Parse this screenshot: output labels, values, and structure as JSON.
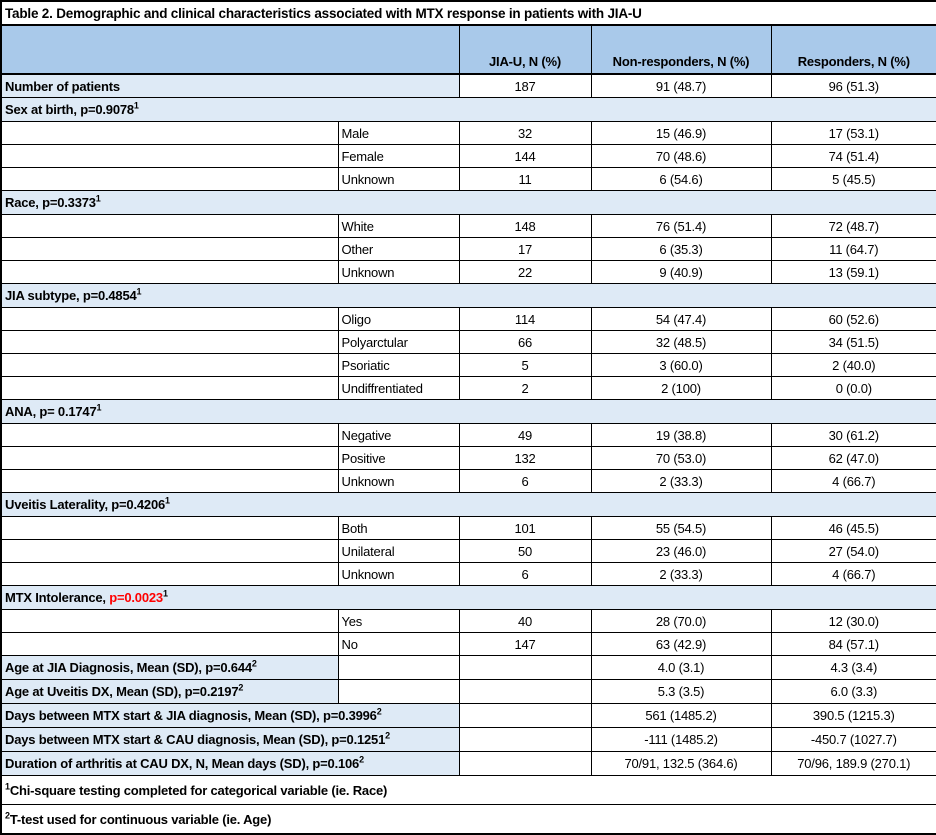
{
  "title": "Table 2. Demographic and clinical characteristics associated with MTX response in patients with JIA-U",
  "columns": [
    "JIA-U,  N (%)",
    "Non-responders, N (%)",
    "Responders, N (%)"
  ],
  "colors": {
    "header_blue": "#A9C9EA",
    "light_blue": "#DEEAF6",
    "p_value_red": "#FF0000",
    "border": "#000000"
  },
  "rows": [
    {
      "type": "count",
      "pre": "Number of patients",
      "jia": "187",
      "nonresp": "91 (48.7)",
      "resp": "96 (51.3)"
    },
    {
      "type": "section",
      "pre": "Sex at birth, p=0.9078",
      "sup": "1"
    },
    {
      "type": "sub",
      "pre": "Male",
      "jia": "32",
      "nonresp": "15 (46.9)",
      "resp": "17 (53.1)"
    },
    {
      "type": "sub",
      "pre": "Female",
      "jia": "144",
      "nonresp": "70 (48.6)",
      "resp": "74 (51.4)"
    },
    {
      "type": "sub",
      "pre": "Unknown",
      "jia": "11",
      "nonresp": "6 (54.6)",
      "resp": "5 (45.5)"
    },
    {
      "type": "section",
      "pre": "Race, p=0.3373",
      "sup": "1"
    },
    {
      "type": "sub",
      "pre": "White",
      "jia": "148",
      "nonresp": "76 (51.4)",
      "resp": "72 (48.7)"
    },
    {
      "type": "sub",
      "pre": "Other",
      "jia": "17",
      "nonresp": "6 (35.3)",
      "resp": "11 (64.7)"
    },
    {
      "type": "sub",
      "pre": "Unknown",
      "jia": "22",
      "nonresp": "9 (40.9)",
      "resp": "13 (59.1)"
    },
    {
      "type": "section",
      "pre": "JIA subtype, p=0.4854",
      "sup": "1"
    },
    {
      "type": "sub",
      "pre": "Oligo",
      "jia": "114",
      "nonresp": "54 (47.4)",
      "resp": "60 (52.6)"
    },
    {
      "type": "sub",
      "pre": "Polyarctular",
      "jia": "66",
      "nonresp": "32 (48.5)",
      "resp": "34 (51.5)"
    },
    {
      "type": "sub",
      "pre": "Psoriatic",
      "jia": "5",
      "nonresp": "3 (60.0)",
      "resp": "2 (40.0)"
    },
    {
      "type": "sub",
      "pre": "Undiffrentiated",
      "jia": "2",
      "nonresp": "2 (100)",
      "resp": "0 (0.0)"
    },
    {
      "type": "section",
      "pre": "ANA, p= 0.1747",
      "sup": "1"
    },
    {
      "type": "sub",
      "pre": "Negative",
      "jia": "49",
      "nonresp": "19 (38.8)",
      "resp": "30 (61.2)"
    },
    {
      "type": "sub",
      "pre": "Positive",
      "jia": "132",
      "nonresp": "70 (53.0)",
      "resp": "62 (47.0)"
    },
    {
      "type": "sub",
      "pre": "Unknown",
      "jia": "6",
      "nonresp": "2 (33.3)",
      "resp": "4 (66.7)"
    },
    {
      "type": "section",
      "pre": "Uveitis Laterality, p=0.4206",
      "sup": "1"
    },
    {
      "type": "sub",
      "pre": "Both",
      "jia": "101",
      "nonresp": "55 (54.5)",
      "resp": "46 (45.5)"
    },
    {
      "type": "sub",
      "pre": "Unilateral",
      "jia": "50",
      "nonresp": "23 (46.0)",
      "resp": "27 (54.0)"
    },
    {
      "type": "sub",
      "pre": "Unknown",
      "jia": "6",
      "nonresp": "2 (33.3)",
      "resp": "4 (66.7)"
    },
    {
      "type": "section",
      "pre": "MTX Intolerance, ",
      "red": "p=0.0023",
      "sup": "1"
    },
    {
      "type": "sub",
      "pre": "Yes",
      "jia": "40",
      "nonresp": "28 (70.0)",
      "resp": "12 (30.0)"
    },
    {
      "type": "sub",
      "pre": "No",
      "jia": "147",
      "nonresp": "63 (42.9)",
      "resp": "84 (57.1)"
    },
    {
      "type": "mean1",
      "pre": "Age at JIA Diagnosis, Mean (SD), p=0.644",
      "sup": "2",
      "nonresp": "4.0 (3.1)",
      "resp": "4.3 (3.4)"
    },
    {
      "type": "mean1",
      "pre": "Age at Uveitis DX, Mean (SD), p=0.2197",
      "sup": "2",
      "nonresp": "5.3 (3.5)",
      "resp": "6.0 (3.3)"
    },
    {
      "type": "mean2",
      "pre": "Days between MTX start & JIA diagnosis, Mean (SD), p=0.3996",
      "sup": "2",
      "nonresp": "561 (1485.2)",
      "resp": "390.5 (1215.3)"
    },
    {
      "type": "mean2",
      "pre": "Days between MTX start & CAU diagnosis, Mean (SD), p=0.1251",
      "sup": "2",
      "nonresp": "-111 (1485.2)",
      "resp": "-450.7 (1027.7)"
    },
    {
      "type": "mean2",
      "pre": "Duration of arthritis at CAU DX, N, Mean days (SD), p=0.106",
      "sup": "2",
      "nonresp": "70/91, 132.5 (364.6)",
      "resp": "70/96, 189.9 (270.1)"
    }
  ],
  "footnotes": [
    {
      "sup": "1",
      "text": "Chi-square testing completed for categorical variable (ie. Race)"
    },
    {
      "sup": "2",
      "text": "T-test used for continuous variable (ie. Age)"
    }
  ]
}
